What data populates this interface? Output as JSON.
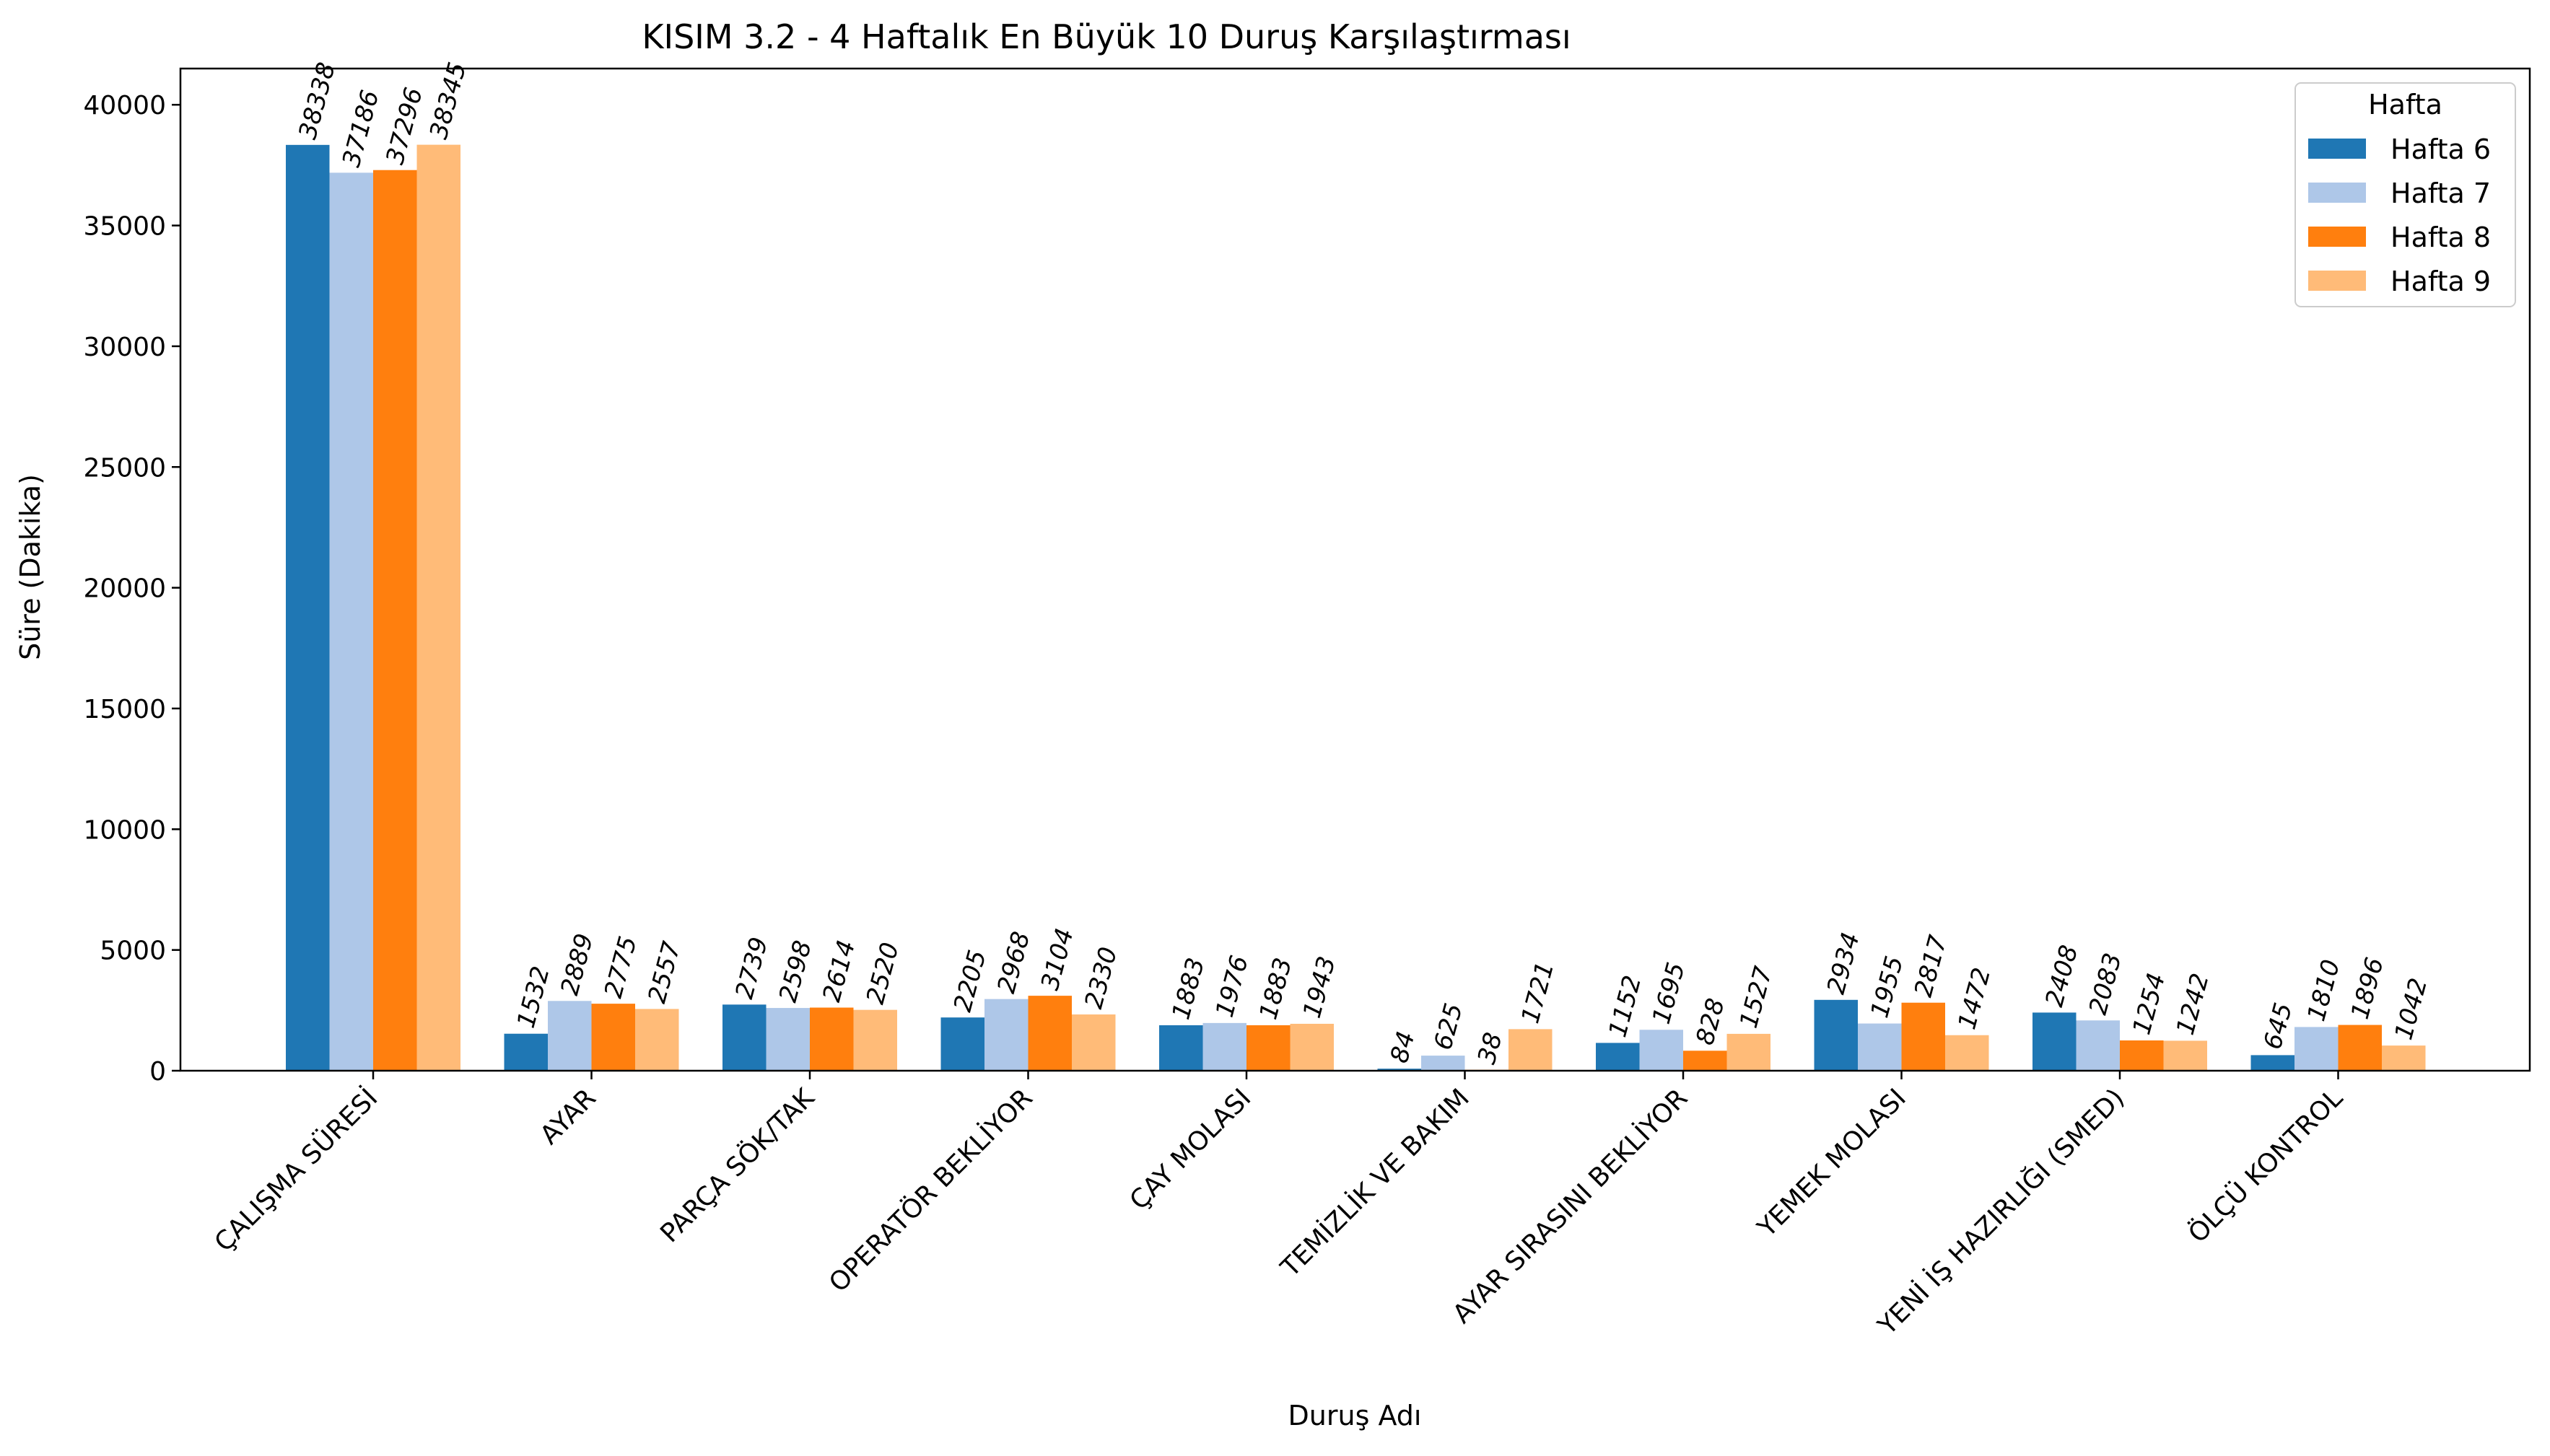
{
  "chart_data": {
    "type": "bar",
    "title": "KISIM 3.2 - 4 Haftalık En Büyük 10 Duruş Karşılaştırması",
    "xlabel": "Duruş Adı",
    "ylabel": "Süre (Dakika)",
    "ylim": [
      0,
      41500
    ],
    "yticks": [
      0,
      5000,
      10000,
      15000,
      20000,
      25000,
      30000,
      35000,
      40000
    ],
    "grid": false,
    "legend": {
      "title": "Hafta",
      "position": "top-right"
    },
    "categories": [
      "ÇALIŞMA SÜRESİ",
      "AYAR",
      "PARÇA SÖK/TAK",
      "OPERATÖR BEKLİYOR",
      "ÇAY MOLASI",
      "TEMİZLİK VE BAKIM",
      "AYAR SIRASINI BEKLİYOR",
      "YEMEK MOLASI",
      "YENİ İŞ HAZIRLIĞI (SMED)",
      "ÖLÇÜ KONTROL"
    ],
    "series": [
      {
        "name": "Hafta 6",
        "color": "#1f77b4",
        "values": [
          38338,
          1532,
          2739,
          2205,
          1883,
          84,
          1152,
          2934,
          2408,
          645
        ]
      },
      {
        "name": "Hafta 7",
        "color": "#aec7e8",
        "values": [
          37186,
          2889,
          2598,
          2968,
          1976,
          625,
          1695,
          1955,
          2083,
          1810
        ]
      },
      {
        "name": "Hafta 8",
        "color": "#ff7f0e",
        "values": [
          37296,
          2775,
          2614,
          3104,
          1883,
          38,
          828,
          2817,
          1254,
          1896
        ]
      },
      {
        "name": "Hafta 9",
        "color": "#ffbb78",
        "values": [
          38345,
          2557,
          2520,
          2330,
          1943,
          1721,
          1527,
          1472,
          1242,
          1042
        ]
      }
    ]
  }
}
